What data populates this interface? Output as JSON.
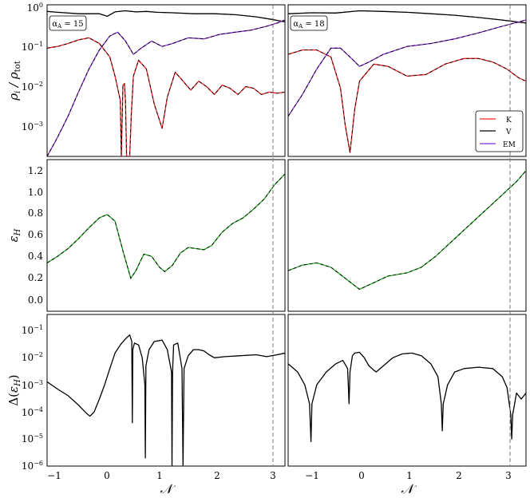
{
  "figure": {
    "ylabels": [
      "ρ / ρ_tot",
      "ε_H",
      "Δ(ε_H)"
    ],
    "xlabel": "𝒩"
  },
  "chart_data": [
    {
      "type": "line",
      "panel": "top-left",
      "annotation": "α_A = 15",
      "xlim": [
        -1.2,
        3.35
      ],
      "ylim": [
        0.0002,
        1.2
      ],
      "yscale": "log",
      "grid": false,
      "yticks": [
        "10^-3",
        "10^-2",
        "10^-1",
        "10^0"
      ],
      "series": [
        {
          "name": "K",
          "color": "#ff2020",
          "dashed_overlay": true,
          "x": [
            -1.2,
            -1,
            -0.8,
            -0.6,
            -0.4,
            -0.2,
            0,
            0.1,
            0.2,
            0.22,
            0.25,
            0.28,
            0.3,
            0.32,
            0.35,
            0.38,
            0.41,
            0.45,
            0.55,
            0.7,
            0.85,
            1,
            1.1,
            1.25,
            1.4,
            1.55,
            1.7,
            1.85,
            2,
            2.15,
            2.3,
            2.45,
            2.6,
            2.75,
            2.9,
            3.05,
            3.2,
            3.35
          ],
          "y": [
            0.1,
            0.11,
            0.13,
            0.16,
            0.18,
            0.13,
            0.06,
            0.02,
            0.005,
            0.0002,
            0.012,
            0.013,
            0.005,
            0.0002,
            0.0002,
            0.0002,
            0.002,
            0.02,
            0.05,
            0.03,
            0.004,
            0.001,
            0.006,
            0.025,
            0.015,
            0.009,
            0.015,
            0.011,
            0.007,
            0.012,
            0.01,
            0.007,
            0.011,
            0.01,
            0.007,
            0.008,
            0.0075,
            0.008
          ]
        },
        {
          "name": "V",
          "color": "#000000",
          "dashed_overlay": true,
          "x": [
            -1.2,
            -1,
            -0.6,
            -0.2,
            -0.05,
            0.1,
            0.3,
            0.5,
            0.7,
            0.9,
            1.2,
            1.6,
            2,
            2.4,
            2.8,
            3.1,
            3.35
          ],
          "y": [
            0.82,
            0.78,
            0.72,
            0.72,
            0.62,
            0.8,
            0.85,
            0.8,
            0.82,
            0.78,
            0.76,
            0.72,
            0.72,
            0.68,
            0.6,
            0.52,
            0.45
          ]
        },
        {
          "name": "EM",
          "color": "#8a2be2",
          "dashed_overlay": true,
          "x": [
            -1.2,
            -1,
            -0.8,
            -0.6,
            -0.4,
            -0.2,
            0,
            0.15,
            0.3,
            0.45,
            0.6,
            0.8,
            1,
            1.2,
            1.5,
            1.8,
            2.1,
            2.4,
            2.7,
            3,
            3.2,
            3.35
          ],
          "y": [
            0.0002,
            0.0006,
            0.002,
            0.008,
            0.03,
            0.09,
            0.2,
            0.25,
            0.15,
            0.07,
            0.1,
            0.15,
            0.11,
            0.13,
            0.18,
            0.17,
            0.22,
            0.25,
            0.28,
            0.35,
            0.42,
            0.5
          ]
        }
      ]
    },
    {
      "type": "line",
      "panel": "top-right",
      "annotation": "α_A = 18",
      "xlim": [
        -1.5,
        3.5
      ],
      "ylim": [
        0.0002,
        1.2
      ],
      "yscale": "log",
      "grid": false,
      "legend": {
        "placement": "lower-right",
        "entries": [
          "K",
          "V",
          "EM"
        ]
      },
      "series": [
        {
          "name": "K",
          "color": "#ff2020",
          "dashed_overlay": true,
          "x": [
            -1.5,
            -1.2,
            -0.9,
            -0.6,
            -0.4,
            -0.3,
            -0.2,
            -0.1,
            0,
            0.3,
            0.6,
            1,
            1.4,
            1.8,
            2.2,
            2.5,
            2.8,
            3.1,
            3.35,
            3.5
          ],
          "y": [
            0.07,
            0.09,
            0.09,
            0.06,
            0.01,
            0.0012,
            0.00025,
            0.003,
            0.015,
            0.04,
            0.035,
            0.02,
            0.022,
            0.04,
            0.055,
            0.055,
            0.045,
            0.03,
            0.018,
            0.015
          ]
        },
        {
          "name": "V",
          "color": "#000000",
          "dashed_overlay": true,
          "x": [
            -1.5,
            -1,
            -0.5,
            0,
            0.5,
            1,
            1.5,
            2,
            2.5,
            3,
            3.5
          ],
          "y": [
            0.72,
            0.76,
            0.75,
            0.85,
            0.82,
            0.78,
            0.72,
            0.66,
            0.58,
            0.5,
            0.42
          ]
        },
        {
          "name": "EM",
          "color": "#8a2be2",
          "dashed_overlay": true,
          "x": [
            -1.5,
            -1.2,
            -0.9,
            -0.6,
            -0.4,
            -0.2,
            0,
            0.2,
            0.5,
            1,
            1.5,
            2,
            2.5,
            3,
            3.5
          ],
          "y": [
            0.002,
            0.007,
            0.03,
            0.1,
            0.1,
            0.06,
            0.035,
            0.045,
            0.07,
            0.11,
            0.13,
            0.17,
            0.24,
            0.35,
            0.5
          ]
        }
      ]
    },
    {
      "type": "line",
      "panel": "middle-left",
      "xlim": [
        -1.2,
        3.35
      ],
      "ylim": [
        -0.1,
        1.28
      ],
      "grid": false,
      "yticks": [
        "0.0",
        "0.2",
        "0.4",
        "0.6",
        "0.8",
        "1.0",
        "1.2"
      ],
      "series": [
        {
          "color": "#20b020",
          "dashed_overlay": true,
          "x": [
            -1.2,
            -1,
            -0.8,
            -0.6,
            -0.4,
            -0.2,
            -0.05,
            0.1,
            0.25,
            0.4,
            0.5,
            0.65,
            0.8,
            0.95,
            1.05,
            1.2,
            1.35,
            1.5,
            1.65,
            1.8,
            1.95,
            2.15,
            2.35,
            2.55,
            2.75,
            2.95,
            3.15,
            3.35
          ],
          "y": [
            0.34,
            0.4,
            0.47,
            0.56,
            0.66,
            0.75,
            0.78,
            0.72,
            0.45,
            0.2,
            0.27,
            0.42,
            0.4,
            0.3,
            0.26,
            0.32,
            0.43,
            0.48,
            0.47,
            0.46,
            0.5,
            0.62,
            0.7,
            0.75,
            0.83,
            0.92,
            1.05,
            1.15
          ]
        }
      ]
    },
    {
      "type": "line",
      "panel": "middle-right",
      "xlim": [
        -1.5,
        3.5
      ],
      "ylim": [
        -0.1,
        1.28
      ],
      "grid": false,
      "series": [
        {
          "color": "#20b020",
          "dashed_overlay": true,
          "x": [
            -1.5,
            -1.2,
            -0.9,
            -0.6,
            -0.3,
            0,
            0.3,
            0.6,
            1,
            1.3,
            1.6,
            2,
            2.4,
            2.8,
            3.1,
            3.3,
            3.5
          ],
          "y": [
            0.27,
            0.32,
            0.34,
            0.3,
            0.2,
            0.1,
            0.16,
            0.22,
            0.25,
            0.3,
            0.4,
            0.56,
            0.72,
            0.88,
            1,
            1.08,
            1.18
          ]
        }
      ]
    },
    {
      "type": "line",
      "panel": "bottom-left",
      "xlim": [
        -1.2,
        3.35
      ],
      "ylim": [
        1e-06,
        0.4
      ],
      "yscale": "log",
      "grid": false,
      "xticks": [
        "−1",
        "0",
        "1",
        "2",
        "3"
      ],
      "yticks": [
        "10^-6",
        "10^-5",
        "10^-4",
        "10^-3",
        "10^-2",
        "10^-1"
      ],
      "series": [
        {
          "color": "#000000",
          "x": [
            -1.2,
            -1,
            -0.8,
            -0.6,
            -0.45,
            -0.38,
            -0.3,
            -0.2,
            -0.1,
            0,
            0.1,
            0.2,
            0.3,
            0.38,
            0.42,
            0.43,
            0.44,
            0.47,
            0.55,
            0.62,
            0.67,
            0.68,
            0.69,
            0.75,
            0.85,
            1,
            1.1,
            1.18,
            1.19,
            1.2,
            1.22,
            1.3,
            1.38,
            1.4,
            1.42,
            1.5,
            1.6,
            1.7,
            1.8,
            1.9,
            2,
            2.2,
            2.5,
            2.8,
            3,
            3.2,
            3.35
          ],
          "y": [
            0.0013,
            0.0007,
            0.0004,
            0.00018,
            9e-05,
            7e-05,
            0.0001,
            0.0003,
            0.001,
            0.004,
            0.015,
            0.03,
            0.05,
            0.07,
            0.04,
            4e-05,
            0.02,
            0.035,
            0.03,
            0.01,
            0.001,
            2e-06,
            0.005,
            0.02,
            0.04,
            0.045,
            0.02,
            0.003,
            1e-06,
            0.003,
            0.03,
            0.035,
            0.004,
            1e-06,
            0.004,
            0.012,
            0.02,
            0.02,
            0.018,
            0.013,
            0.01,
            0.011,
            0.012,
            0.013,
            0.011,
            0.013,
            0.015
          ]
        }
      ]
    },
    {
      "type": "line",
      "panel": "bottom-right",
      "xlim": [
        -1.5,
        3.5
      ],
      "ylim": [
        1e-06,
        0.4
      ],
      "yscale": "log",
      "grid": false,
      "xticks": [
        "−1",
        "0",
        "1",
        "2",
        "3"
      ],
      "series": [
        {
          "color": "#000000",
          "x": [
            -1.5,
            -1.3,
            -1.15,
            -1.05,
            -1.02,
            -1,
            -0.9,
            -0.7,
            -0.5,
            -0.35,
            -0.25,
            -0.22,
            -0.2,
            -0.15,
            -0.1,
            0,
            0.1,
            0.2,
            0.3,
            0.35,
            0.5,
            0.7,
            0.9,
            1.1,
            1.3,
            1.5,
            1.65,
            1.72,
            1.74,
            1.76,
            1.85,
            2,
            2.2,
            2.5,
            2.8,
            3,
            3.1,
            3.18,
            3.2,
            3.22,
            3.3,
            3.4,
            3.5
          ],
          "y": [
            0.006,
            0.003,
            0.001,
            0.0002,
            8e-06,
            0.0002,
            0.001,
            0.003,
            0.006,
            0.008,
            0.004,
            0.0002,
            0.003,
            0.012,
            0.015,
            0.016,
            0.01,
            0.005,
            0.0035,
            0.003,
            0.005,
            0.01,
            0.014,
            0.015,
            0.012,
            0.006,
            0.002,
            0.0002,
            2e-05,
            0.0002,
            0.001,
            0.003,
            0.004,
            0.0045,
            0.004,
            0.002,
            0.0008,
            8e-05,
            1e-05,
            8e-05,
            0.0005,
            0.0003,
            0.0005
          ]
        }
      ]
    }
  ]
}
